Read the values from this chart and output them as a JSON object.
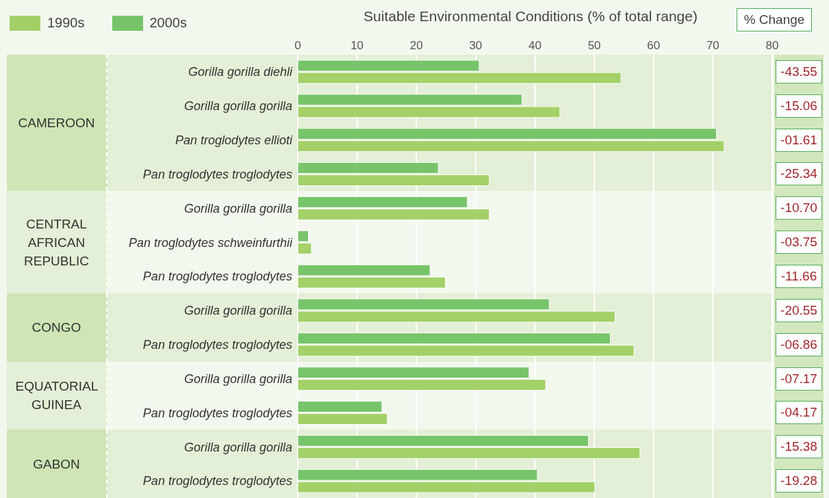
{
  "chart_data": {
    "type": "bar",
    "orientation": "horizontal",
    "xlabel": "Suitable Environmental Conditions (% of total range)",
    "categories": [
      "Gorilla gorilla diehli",
      "Gorilla gorilla gorilla",
      "Pan troglodytes ellioti",
      "Pan troglodytes troglodytes",
      "Gorilla gorilla gorilla",
      "Pan troglodytes schweinfurthii",
      "Pan troglodytes troglodytes",
      "Gorilla gorilla gorilla",
      "Pan troglodytes troglodytes",
      "Gorilla gorilla gorilla",
      "Pan troglodytes troglodytes",
      "Gorilla gorilla gorilla",
      "Pan troglodytes troglodytes"
    ],
    "series": [
      {
        "name": "1990s",
        "color": "#a3d168",
        "values": [
          54.5,
          44.2,
          71.9,
          32.3,
          32.3,
          2.3,
          24.9,
          53.5,
          56.7,
          41.8,
          15.1,
          57.7,
          50.1
        ]
      },
      {
        "name": "2000s",
        "color": "#77c46a",
        "values": [
          30.6,
          37.8,
          70.6,
          23.7,
          28.6,
          1.8,
          22.3,
          42.4,
          52.7,
          39.0,
          14.2,
          49.0,
          40.4
        ]
      }
    ],
    "xlim": [
      0,
      80
    ],
    "xticks": [
      0,
      10,
      20,
      30,
      40,
      50,
      60,
      70,
      80
    ],
    "grid": "x",
    "legend": "top left",
    "annotations": [
      "CAMEROON",
      "CENTRAL AFRICAN REPUBLIC",
      "CONGO",
      "EQUATORIAL GUINEA",
      "GABON",
      "% Change",
      "-43.55",
      "-15.06",
      "-01.61",
      "-25.34",
      "-10.70",
      "-03.75",
      "-11.66",
      "-20.55",
      "-06.86",
      "-07.17",
      "-04.17",
      "-15.38",
      "-19.28"
    ]
  }
}
